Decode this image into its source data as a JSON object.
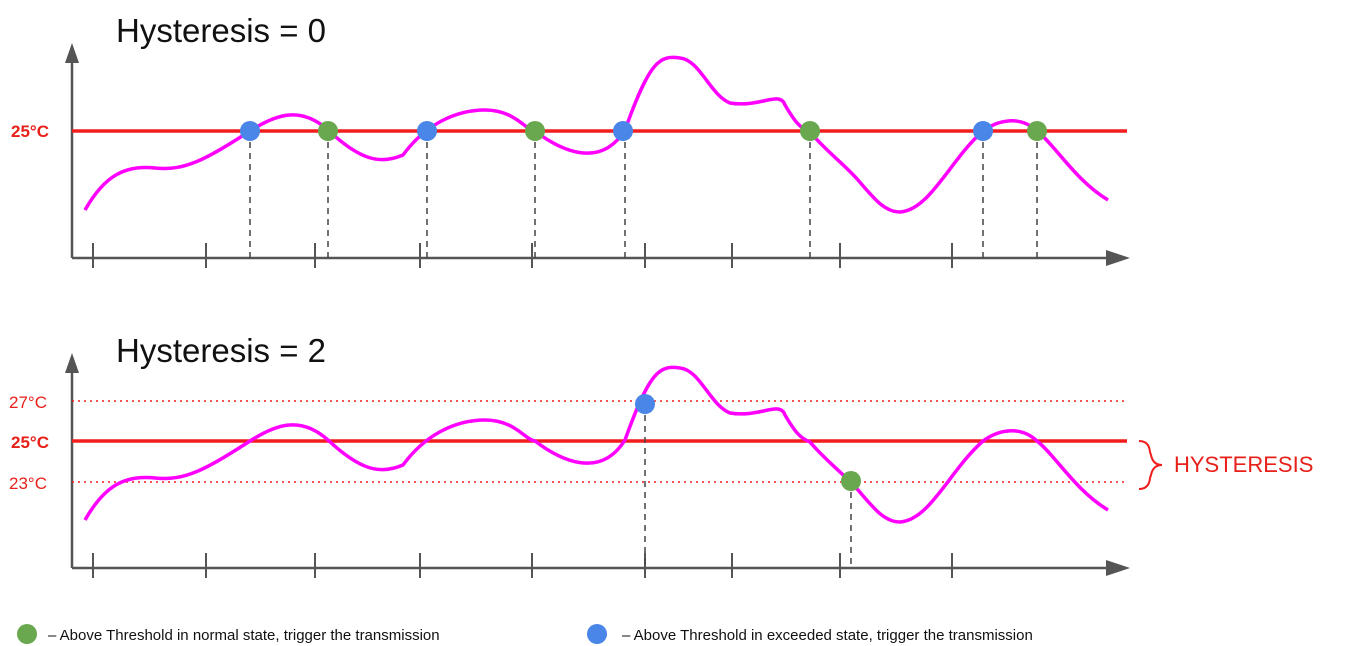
{
  "colors": {
    "threshold": "#f21d1d",
    "curve": "#ff00ff",
    "axis": "#555555",
    "normal_state_dot": "#6aa84f",
    "exceeded_state_dot": "#4a86e8"
  },
  "panel_top": {
    "title": "Hysteresis = 0",
    "threshold_label": "25°C"
  },
  "panel_bottom": {
    "title": "Hysteresis = 2",
    "upper_label": "27°C",
    "threshold_label": "25°C",
    "lower_label": "23°C",
    "hysteresis_label": "HYSTERESIS"
  },
  "legend": {
    "green_text": "– Above Threshold in normal state,  trigger the transmission",
    "blue_text": "– Above Threshold in exceeded state, trigger the transmission"
  }
}
